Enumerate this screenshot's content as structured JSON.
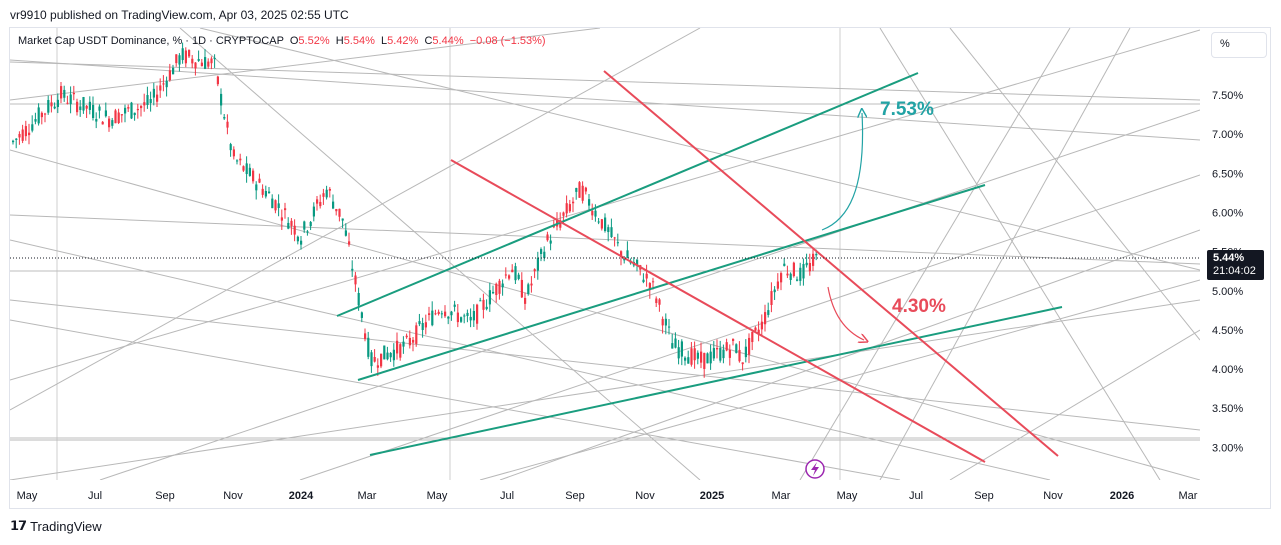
{
  "header": {
    "published_by": "vr9910 published on TradingView.com, Apr 03, 2025 02:55 UTC"
  },
  "legend": {
    "symbol": "Market Cap USDT Dominance, % · 1D · CRYPTOCAP",
    "open_label": "O",
    "open": "5.52%",
    "high_label": "H",
    "high": "5.54%",
    "low_label": "L",
    "low": "5.42%",
    "close_label": "C",
    "close": "5.44%",
    "change": "−0.08 (−1.53%)"
  },
  "toolbar": {
    "unit": "%"
  },
  "price_tag": {
    "value": "5.44%",
    "countdown": "21:04:02"
  },
  "annotations": {
    "upper_target": "7.53%",
    "lower_target": "4.30%"
  },
  "footer": {
    "brand": "TradingView"
  },
  "colors": {
    "bull": "#089981",
    "bear": "#f23645",
    "teal_text": "#22a3a5",
    "channel": "#1a9d7f",
    "trend_red": "#e84b5a",
    "fan_gray": "#b8b8b8"
  },
  "chart_data": {
    "type": "candlestick",
    "title": "Market Cap USDT Dominance, %",
    "x_tick_labels": [
      "May",
      "Jul",
      "Sep",
      "Nov",
      "2024",
      "Mar",
      "May",
      "Jul",
      "Sep",
      "Nov",
      "2025",
      "Mar",
      "May",
      "Jul",
      "Sep",
      "Nov",
      "2026",
      "Mar"
    ],
    "y_tick_labels": [
      "7.50%",
      "7.00%",
      "6.50%",
      "6.00%",
      "5.50%",
      "5.00%",
      "4.50%",
      "4.00%",
      "3.50%",
      "3.00%"
    ],
    "ylim": [
      2.6,
      8.3
    ],
    "last_close": 5.44,
    "grid": true,
    "series": [
      {
        "values": [
          {
            "x": "2023-05",
            "y": 6.9
          },
          {
            "x": "2023-06",
            "y": 7.5
          },
          {
            "x": "2023-07",
            "y": 7.2
          },
          {
            "x": "2023-08",
            "y": 7.4
          },
          {
            "x": "2023-09",
            "y": 8.0
          },
          {
            "x": "2023-10",
            "y": 7.9
          },
          {
            "x": "2023-11",
            "y": 6.7
          },
          {
            "x": "2023-12",
            "y": 6.2
          },
          {
            "x": "2024-01",
            "y": 5.7
          },
          {
            "x": "2024-01-25",
            "y": 6.3
          },
          {
            "x": "2024-02",
            "y": 5.9
          },
          {
            "x": "2024-03",
            "y": 4.1
          },
          {
            "x": "2024-04",
            "y": 4.3
          },
          {
            "x": "2024-05",
            "y": 4.8
          },
          {
            "x": "2024-06",
            "y": 4.6
          },
          {
            "x": "2024-07",
            "y": 5.3
          },
          {
            "x": "2024-07-20",
            "y": 4.9
          },
          {
            "x": "2024-08",
            "y": 5.6
          },
          {
            "x": "2024-09",
            "y": 6.3
          },
          {
            "x": "2024-10",
            "y": 5.5
          },
          {
            "x": "2024-11",
            "y": 5.1
          },
          {
            "x": "2024-11-20",
            "y": 4.3
          },
          {
            "x": "2024-12",
            "y": 4.1
          },
          {
            "x": "2025-01",
            "y": 4.3
          },
          {
            "x": "2025-02",
            "y": 4.1
          },
          {
            "x": "2025-02-20",
            "y": 4.6
          },
          {
            "x": "2025-03",
            "y": 5.3
          },
          {
            "x": "2025-03-15",
            "y": 5.2
          },
          {
            "x": "2025-04-03",
            "y": 5.44
          }
        ]
      }
    ]
  }
}
